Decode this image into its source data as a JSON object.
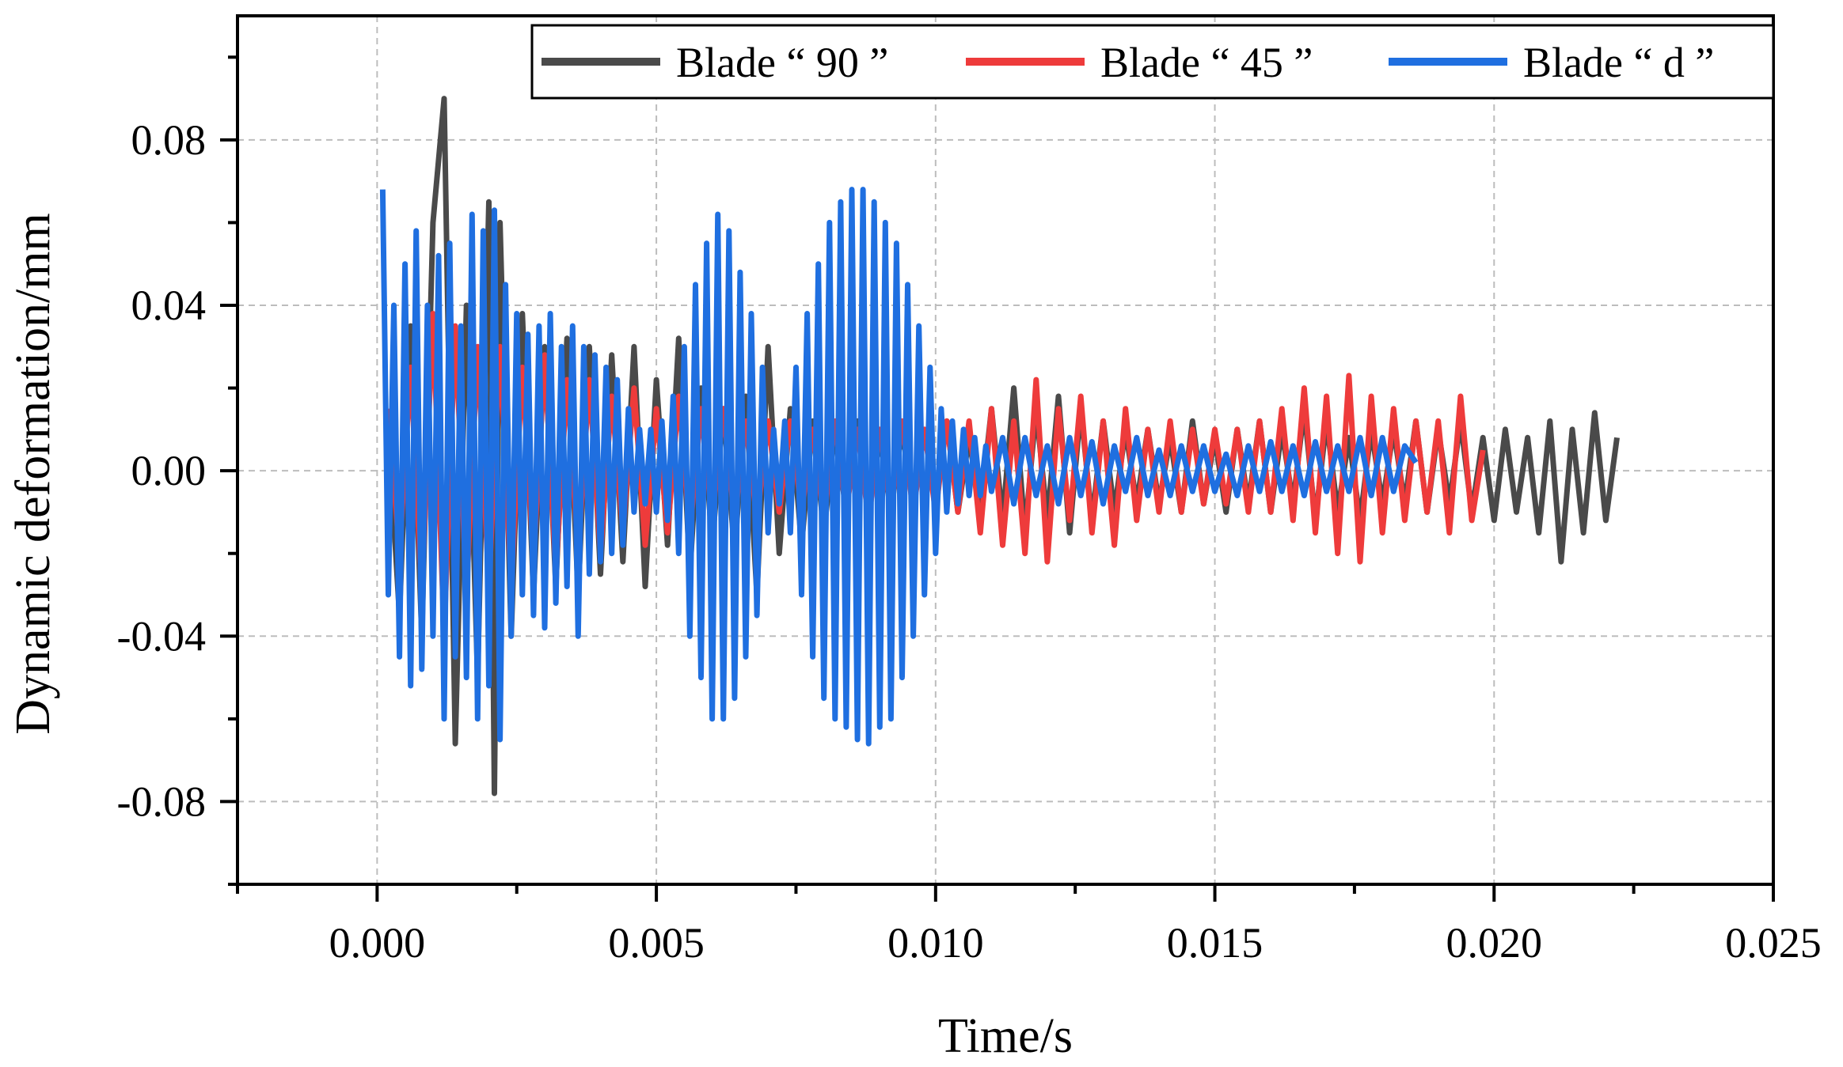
{
  "chart_data": {
    "type": "line",
    "title": "",
    "xlabel": "Time/s",
    "ylabel": "Dynamic deformation/mm",
    "xlim": [
      -0.0025,
      0.025
    ],
    "ylim": [
      -0.1,
      0.11
    ],
    "x_ticks": [
      0.0,
      0.005,
      0.01,
      0.015,
      0.02,
      0.025
    ],
    "x_tick_labels": [
      "0.000",
      "0.005",
      "0.010",
      "0.015",
      "0.020",
      "0.025"
    ],
    "y_ticks": [
      -0.08,
      -0.04,
      0.0,
      0.04,
      0.08
    ],
    "y_tick_labels": [
      "-0.08",
      "-0.04",
      "0.00",
      "0.04",
      "0.08"
    ],
    "grid": true,
    "legend": "top-right",
    "series": [
      {
        "name": "Blade “ 90 ”",
        "color": "#4a4a4a",
        "x": [
          0.0002,
          0.0004,
          0.0006,
          0.0008,
          0.001,
          0.0012,
          0.0014,
          0.0016,
          0.0018,
          0.002,
          0.0021,
          0.0022,
          0.0024,
          0.0026,
          0.0028,
          0.003,
          0.0032,
          0.0034,
          0.0036,
          0.0038,
          0.004,
          0.0042,
          0.0044,
          0.0046,
          0.0048,
          0.005,
          0.0052,
          0.0054,
          0.0056,
          0.0058,
          0.006,
          0.0062,
          0.0064,
          0.0066,
          0.0068,
          0.007,
          0.0072,
          0.0074,
          0.0076,
          0.0078,
          0.008,
          0.0082,
          0.0084,
          0.0086,
          0.0088,
          0.009,
          0.0092,
          0.0094,
          0.0096,
          0.0098,
          0.01,
          0.0102,
          0.0104,
          0.0106,
          0.0108,
          0.011,
          0.0112,
          0.0114,
          0.0116,
          0.0118,
          0.012,
          0.0122,
          0.0124,
          0.0126,
          0.0128,
          0.013,
          0.0132,
          0.0134,
          0.0136,
          0.0138,
          0.014,
          0.0142,
          0.0144,
          0.0146,
          0.0148,
          0.015,
          0.0152,
          0.0154,
          0.0156,
          0.0158,
          0.016,
          0.0162,
          0.0164,
          0.0166,
          0.0168,
          0.017,
          0.0172,
          0.0174,
          0.0176,
          0.0178,
          0.018,
          0.0182,
          0.0184,
          0.0186,
          0.0188,
          0.019,
          0.0192,
          0.0194,
          0.0196,
          0.0198,
          0.02,
          0.0202,
          0.0204,
          0.0206,
          0.0208,
          0.021,
          0.0212,
          0.0214,
          0.0216,
          0.0218,
          0.022,
          0.0222
        ],
        "y": [
          0.01,
          -0.035,
          0.035,
          -0.04,
          0.06,
          0.09,
          -0.066,
          0.04,
          -0.05,
          0.065,
          -0.078,
          0.06,
          -0.04,
          0.038,
          -0.03,
          0.03,
          -0.028,
          0.032,
          -0.03,
          0.03,
          -0.025,
          0.028,
          -0.022,
          0.03,
          -0.028,
          0.022,
          -0.018,
          0.032,
          -0.025,
          0.02,
          -0.018,
          0.015,
          -0.02,
          0.018,
          -0.03,
          0.03,
          -0.02,
          0.015,
          -0.018,
          0.012,
          -0.015,
          0.01,
          -0.01,
          0.012,
          -0.01,
          0.008,
          -0.01,
          0.01,
          -0.008,
          0.01,
          -0.008,
          0.012,
          -0.01,
          0.008,
          -0.01,
          0.015,
          -0.012,
          0.02,
          -0.015,
          0.015,
          -0.012,
          0.018,
          -0.015,
          0.015,
          -0.012,
          0.012,
          -0.01,
          0.01,
          -0.008,
          0.01,
          -0.008,
          0.008,
          -0.01,
          0.012,
          -0.008,
          0.008,
          -0.01,
          0.01,
          -0.008,
          0.012,
          -0.01,
          0.01,
          -0.008,
          0.015,
          -0.012,
          0.012,
          -0.01,
          0.008,
          -0.012,
          0.01,
          -0.008,
          0.01,
          -0.008,
          0.012,
          -0.01,
          0.01,
          -0.008,
          0.012,
          -0.01,
          0.008,
          -0.012,
          0.01,
          -0.01,
          0.008,
          -0.015,
          0.012,
          -0.022,
          0.01,
          -0.015,
          0.014,
          -0.012,
          0.008
        ]
      },
      {
        "name": "Blade “ 45 ”",
        "color": "#ee3b3b",
        "x": [
          0.0002,
          0.0004,
          0.0006,
          0.0008,
          0.001,
          0.0012,
          0.0014,
          0.0016,
          0.0018,
          0.002,
          0.0022,
          0.0024,
          0.0026,
          0.0028,
          0.003,
          0.0032,
          0.0034,
          0.0036,
          0.0038,
          0.004,
          0.0042,
          0.0044,
          0.0046,
          0.0048,
          0.005,
          0.0052,
          0.0054,
          0.0056,
          0.0058,
          0.006,
          0.0062,
          0.0064,
          0.0066,
          0.0068,
          0.007,
          0.0072,
          0.0074,
          0.0076,
          0.0078,
          0.008,
          0.0082,
          0.0084,
          0.0086,
          0.0088,
          0.009,
          0.0092,
          0.0094,
          0.0096,
          0.0098,
          0.01,
          0.0102,
          0.0104,
          0.0106,
          0.0108,
          0.011,
          0.0112,
          0.0114,
          0.0116,
          0.0118,
          0.012,
          0.0122,
          0.0124,
          0.0126,
          0.0128,
          0.013,
          0.0132,
          0.0134,
          0.0136,
          0.0138,
          0.014,
          0.0142,
          0.0144,
          0.0146,
          0.0148,
          0.015,
          0.0152,
          0.0154,
          0.0156,
          0.0158,
          0.016,
          0.0162,
          0.0164,
          0.0166,
          0.0168,
          0.017,
          0.0172,
          0.0174,
          0.0176,
          0.0178,
          0.018,
          0.0182,
          0.0184,
          0.0186,
          0.0188,
          0.019,
          0.0192,
          0.0194,
          0.0196,
          0.0198
        ],
        "y": [
          0.015,
          -0.02,
          0.025,
          -0.03,
          0.038,
          -0.04,
          0.035,
          -0.03,
          0.03,
          -0.028,
          0.03,
          -0.028,
          0.025,
          -0.022,
          0.028,
          -0.025,
          0.022,
          -0.02,
          0.022,
          -0.02,
          0.018,
          -0.015,
          0.02,
          -0.018,
          0.015,
          -0.015,
          0.018,
          -0.015,
          0.015,
          -0.012,
          0.015,
          -0.012,
          0.012,
          -0.012,
          0.012,
          -0.01,
          0.012,
          -0.01,
          0.01,
          -0.012,
          0.012,
          -0.01,
          0.01,
          -0.012,
          0.01,
          -0.01,
          0.012,
          -0.01,
          0.01,
          -0.01,
          0.012,
          -0.01,
          0.012,
          -0.015,
          0.015,
          -0.018,
          0.012,
          -0.02,
          0.022,
          -0.022,
          0.015,
          -0.012,
          0.018,
          -0.015,
          0.012,
          -0.018,
          0.015,
          -0.012,
          0.01,
          -0.01,
          0.012,
          -0.01,
          0.01,
          -0.008,
          0.01,
          -0.008,
          0.01,
          -0.01,
          0.012,
          -0.01,
          0.015,
          -0.012,
          0.02,
          -0.015,
          0.018,
          -0.02,
          0.023,
          -0.022,
          0.018,
          -0.015,
          0.015,
          -0.012,
          0.012,
          -0.01,
          0.012,
          -0.015,
          0.018,
          -0.012,
          0.005
        ]
      },
      {
        "name": "Blade “ d ”",
        "color": "#1f6fe0",
        "x": [
          0.0001,
          0.0002,
          0.0003,
          0.0004,
          0.0005,
          0.0006,
          0.0007,
          0.0008,
          0.0009,
          0.001,
          0.0011,
          0.0012,
          0.0013,
          0.0014,
          0.0015,
          0.0016,
          0.0017,
          0.0018,
          0.0019,
          0.002,
          0.0021,
          0.0022,
          0.0023,
          0.0024,
          0.0025,
          0.0026,
          0.0027,
          0.0028,
          0.0029,
          0.003,
          0.0031,
          0.0032,
          0.0033,
          0.0034,
          0.0035,
          0.0036,
          0.0037,
          0.0038,
          0.0039,
          0.004,
          0.0041,
          0.0042,
          0.0043,
          0.0044,
          0.0045,
          0.0046,
          0.0047,
          0.0048,
          0.0049,
          0.005,
          0.0051,
          0.0052,
          0.0053,
          0.0054,
          0.0055,
          0.0056,
          0.0057,
          0.0058,
          0.0059,
          0.006,
          0.0061,
          0.0062,
          0.0063,
          0.0064,
          0.0065,
          0.0066,
          0.0067,
          0.0068,
          0.0069,
          0.007,
          0.0071,
          0.0072,
          0.0073,
          0.0074,
          0.0075,
          0.0076,
          0.0077,
          0.0078,
          0.0079,
          0.008,
          0.0081,
          0.0082,
          0.0083,
          0.0084,
          0.0085,
          0.0086,
          0.0087,
          0.0088,
          0.0089,
          0.009,
          0.0091,
          0.0092,
          0.0093,
          0.0094,
          0.0095,
          0.0096,
          0.0097,
          0.0098,
          0.0099,
          0.01,
          0.0101,
          0.0102,
          0.0103,
          0.0104,
          0.0105,
          0.0106,
          0.0107,
          0.0108,
          0.0109,
          0.011,
          0.0112,
          0.0114,
          0.0116,
          0.0118,
          0.012,
          0.0122,
          0.0124,
          0.0126,
          0.0128,
          0.013,
          0.0132,
          0.0134,
          0.0136,
          0.0138,
          0.014,
          0.0142,
          0.0144,
          0.0146,
          0.0148,
          0.015,
          0.0152,
          0.0154,
          0.0156,
          0.0158,
          0.016,
          0.0162,
          0.0164,
          0.0166,
          0.0168,
          0.017,
          0.0172,
          0.0174,
          0.0176,
          0.0178,
          0.018,
          0.0182,
          0.0184,
          0.0186
        ],
        "y": [
          0.068,
          -0.03,
          0.04,
          -0.045,
          0.05,
          -0.052,
          0.058,
          -0.048,
          0.04,
          -0.04,
          0.052,
          -0.06,
          0.055,
          -0.045,
          0.035,
          -0.05,
          0.062,
          -0.06,
          0.058,
          -0.052,
          0.063,
          -0.065,
          0.045,
          -0.04,
          0.038,
          -0.03,
          0.033,
          -0.035,
          0.035,
          -0.038,
          0.038,
          -0.032,
          0.03,
          -0.028,
          0.035,
          -0.04,
          0.03,
          -0.025,
          0.028,
          -0.022,
          0.025,
          -0.02,
          0.022,
          -0.018,
          0.015,
          -0.01,
          0.01,
          -0.008,
          0.01,
          -0.01,
          0.012,
          -0.012,
          0.018,
          -0.02,
          0.03,
          -0.04,
          0.045,
          -0.05,
          0.055,
          -0.06,
          0.062,
          -0.06,
          0.058,
          -0.055,
          0.048,
          -0.045,
          0.038,
          -0.035,
          0.025,
          -0.015,
          0.01,
          -0.008,
          0.012,
          -0.015,
          0.025,
          -0.03,
          0.038,
          -0.045,
          0.05,
          -0.055,
          0.06,
          -0.06,
          0.065,
          -0.062,
          0.068,
          -0.065,
          0.068,
          -0.066,
          0.065,
          -0.062,
          0.06,
          -0.06,
          0.055,
          -0.05,
          0.045,
          -0.04,
          0.035,
          -0.03,
          0.025,
          -0.02,
          0.015,
          -0.01,
          0.012,
          -0.008,
          0.01,
          -0.006,
          0.008,
          -0.006,
          0.006,
          -0.005,
          0.008,
          -0.008,
          0.008,
          -0.006,
          0.006,
          -0.008,
          0.008,
          -0.006,
          0.007,
          -0.008,
          0.006,
          -0.005,
          0.008,
          -0.006,
          0.005,
          -0.006,
          0.006,
          -0.005,
          0.006,
          -0.005,
          0.004,
          -0.006,
          0.006,
          -0.005,
          0.007,
          -0.005,
          0.006,
          -0.006,
          0.007,
          -0.005,
          0.006,
          -0.005,
          0.008,
          -0.006,
          0.008,
          -0.005,
          0.006,
          0.002
        ]
      }
    ]
  }
}
